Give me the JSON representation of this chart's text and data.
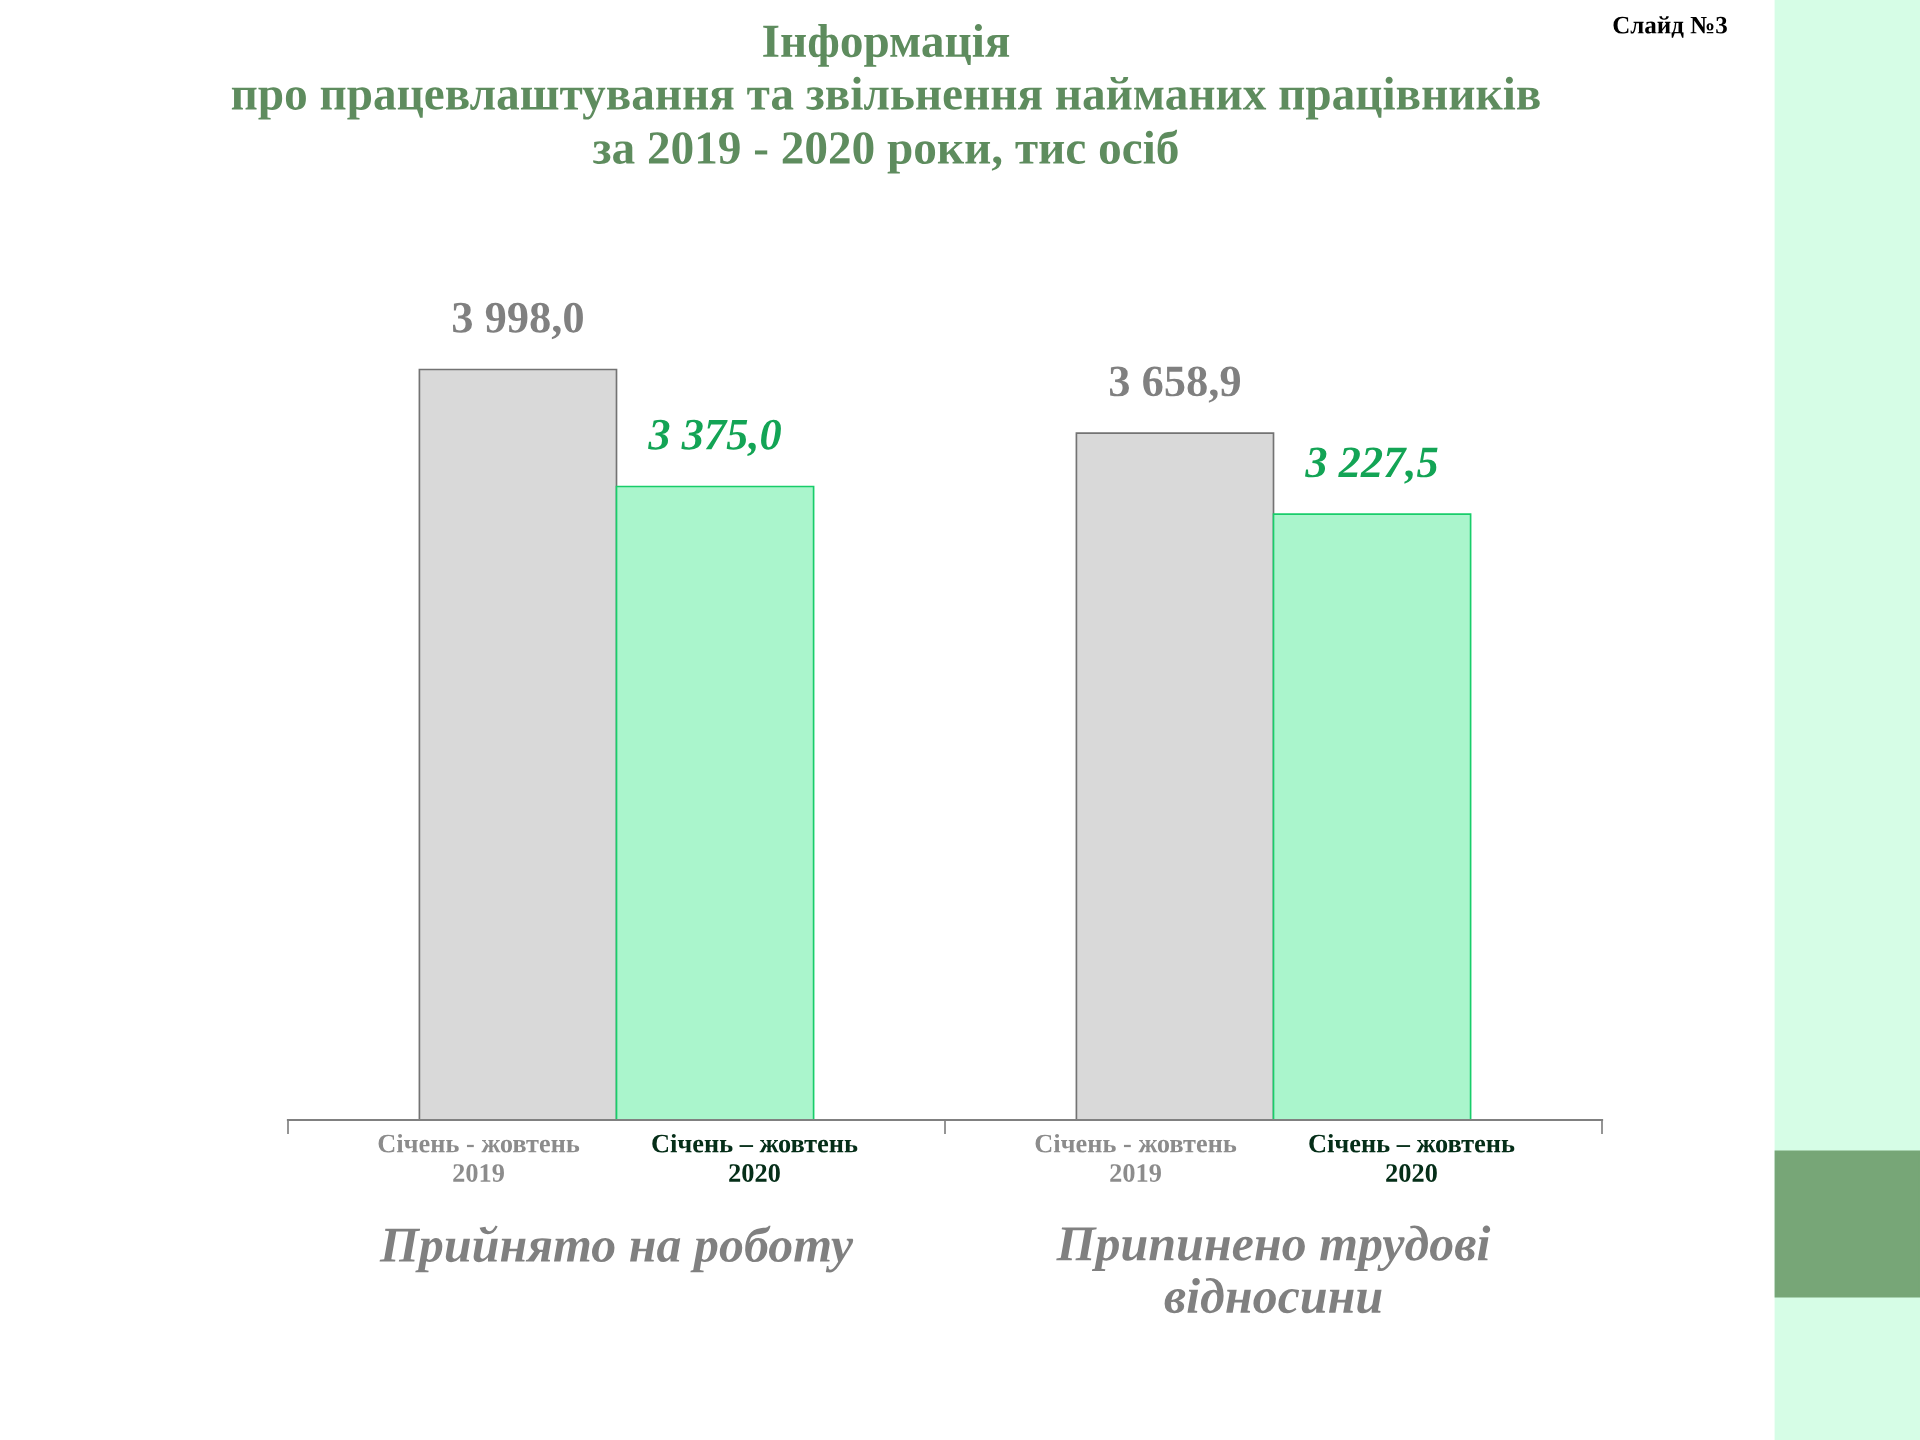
{
  "chart_data": {
    "type": "bar",
    "title": "Інформація\nпро працевлаштування та звільнення найманих працівників\nза 2019 - 2020 роки, тис осіб",
    "categories": [
      "Прийнято на роботу",
      "Припинено трудові\nвідносини"
    ],
    "series": [
      {
        "name": "Січень - жовтень\n2019",
        "color": "#d9d9d9",
        "values": [
          3998.0,
          3658.9
        ],
        "value_labels": [
          "3 998,0",
          "3 658,9"
        ]
      },
      {
        "name": "Січень – жовтень\n2020",
        "color": "#aaf5cc",
        "values": [
          3375.0,
          3227.5
        ],
        "value_labels": [
          "3 375,0",
          "3 227,5"
        ]
      }
    ],
    "annotations": [
      "Слайд №3"
    ]
  }
}
